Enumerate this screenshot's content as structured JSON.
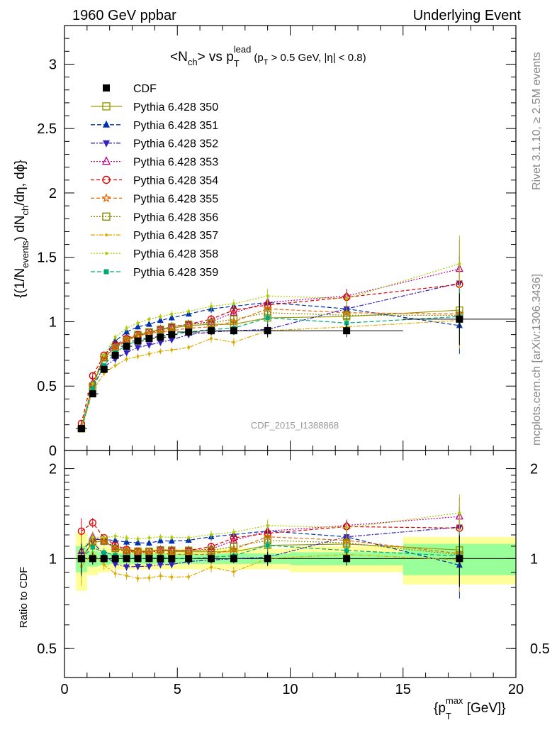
{
  "header": {
    "left": "1960 GeV ppbar",
    "right": "Underlying Event"
  },
  "side": {
    "rivet": "Rivet 3.1.10, ≥ 2.5M events",
    "mcplots": "mcplots.cern.ch [arXiv:1306.3436]"
  },
  "watermark": "CDF_2015_I1388868",
  "title": {
    "pre": "<N",
    "sub1": "ch",
    "mid": "> vs p",
    "sub2": "T",
    "sup2": "lead",
    "cut": "(p",
    "cut_sub": "T",
    "cut_rest": " > 0.5 GeV, |η| < 0.8)"
  },
  "ylabel_main": {
    "a": "{(1/N",
    "a_sub": "events",
    "b": ") dN",
    "b_sub": "ch",
    "c": "/dη, dϕ}"
  },
  "ylabel_ratio": "Ratio to CDF",
  "xlabel": {
    "a": "{p",
    "sub": "T",
    "sup": "max",
    "b": " [GeV]}"
  },
  "chart_data": {
    "type": "scatter",
    "x": [
      0.75,
      1.25,
      1.75,
      2.25,
      2.75,
      3.25,
      3.75,
      4.25,
      4.75,
      5.5,
      6.5,
      7.5,
      9.0,
      12.5,
      17.5
    ],
    "x_edges": [
      0.5,
      1.0,
      1.5,
      2.0,
      2.5,
      3.0,
      3.5,
      4.0,
      4.5,
      5.0,
      6.0,
      7.0,
      8.0,
      10.0,
      15.0,
      20.0
    ],
    "xlim": [
      0,
      20
    ],
    "ylim_main": [
      0,
      3.3
    ],
    "ylim_ratio": [
      0.4,
      2.3
    ],
    "yticks_main": [
      0,
      0.5,
      1,
      1.5,
      2,
      2.5,
      3
    ],
    "yticks_ratio": [
      0.5,
      1,
      2
    ],
    "xticks": [
      0,
      5,
      10,
      15,
      20
    ],
    "series": [
      {
        "name": "CDF",
        "color": "#000000",
        "marker": "square-filled",
        "dash": "",
        "values": [
          0.17,
          0.44,
          0.63,
          0.74,
          0.81,
          0.85,
          0.87,
          0.88,
          0.9,
          0.92,
          0.93,
          0.93,
          0.93,
          0.93,
          1.02
        ]
      },
      {
        "name": "Pythia 6.428 350",
        "color": "#999900",
        "marker": "square-open",
        "dash": "",
        "values": [
          0.17,
          0.5,
          0.72,
          0.8,
          0.86,
          0.9,
          0.92,
          0.94,
          0.95,
          0.97,
          0.98,
          0.98,
          1.03,
          1.04,
          1.09
        ]
      },
      {
        "name": "Pythia 6.428 351",
        "color": "#0033aa",
        "marker": "triangle-up-filled",
        "dash": "6,3",
        "values": [
          0.18,
          0.51,
          0.73,
          0.85,
          0.92,
          0.96,
          0.98,
          1.01,
          1.03,
          1.06,
          1.1,
          1.12,
          1.15,
          1.1,
          0.97
        ]
      },
      {
        "name": "Pythia 6.428 352",
        "color": "#3322bb",
        "marker": "triangle-down-filled",
        "dash": "6,2,2,2",
        "values": [
          0.17,
          0.5,
          0.65,
          0.71,
          0.76,
          0.8,
          0.82,
          0.84,
          0.86,
          0.9,
          0.92,
          0.93,
          0.94,
          1.1,
          1.3
        ]
      },
      {
        "name": "Pythia 6.428 353",
        "color": "#bb0088",
        "marker": "triangle-up-open",
        "dash": "2,2",
        "values": [
          0.18,
          0.52,
          0.72,
          0.81,
          0.86,
          0.89,
          0.91,
          0.94,
          0.96,
          0.98,
          1.0,
          1.07,
          1.15,
          1.2,
          1.41
        ]
      },
      {
        "name": "Pythia 6.428 354",
        "color": "#dd0000",
        "marker": "circle-open",
        "dash": "5,3",
        "values": [
          0.21,
          0.58,
          0.74,
          0.82,
          0.87,
          0.9,
          0.92,
          0.94,
          0.96,
          0.98,
          1.02,
          1.09,
          1.13,
          1.19,
          1.29
        ]
      },
      {
        "name": "Pythia 6.428 355",
        "color": "#ee6600",
        "marker": "star-open",
        "dash": "5,3",
        "values": [
          0.17,
          0.5,
          0.72,
          0.8,
          0.86,
          0.89,
          0.91,
          0.92,
          0.93,
          0.95,
          0.96,
          1.0,
          1.1,
          1.07,
          1.06
        ]
      },
      {
        "name": "Pythia 6.428 356",
        "color": "#888800",
        "marker": "square-open",
        "dash": "2,2",
        "values": [
          0.17,
          0.5,
          0.72,
          0.8,
          0.85,
          0.89,
          0.92,
          0.94,
          0.96,
          0.98,
          0.99,
          1.02,
          1.07,
          1.05,
          1.05
        ]
      },
      {
        "name": "Pythia 6.428 357",
        "color": "#ddaa00",
        "marker": "dot",
        "dash": "6,2,2,2",
        "values": [
          0.16,
          0.46,
          0.6,
          0.66,
          0.71,
          0.73,
          0.75,
          0.77,
          0.78,
          0.8,
          0.87,
          0.84,
          0.93,
          0.96,
          1.01
        ]
      },
      {
        "name": "Pythia 6.428 358",
        "color": "#aacc00",
        "marker": "dot",
        "dash": "2,2",
        "values": [
          0.18,
          0.52,
          0.74,
          0.88,
          0.95,
          0.99,
          1.02,
          1.04,
          1.06,
          1.08,
          1.12,
          1.14,
          1.2,
          1.18,
          1.45
        ]
      },
      {
        "name": "Pythia 6.428 359",
        "color": "#00aa77",
        "marker": "square-small-filled",
        "dash": "6,3",
        "values": [
          0.17,
          0.48,
          0.66,
          0.76,
          0.82,
          0.85,
          0.87,
          0.89,
          0.9,
          0.92,
          0.94,
          0.95,
          1.03,
          0.99,
          1.04
        ]
      }
    ],
    "data_errors": [
      0.02,
      0.02,
      0.02,
      0.02,
      0.02,
      0.02,
      0.02,
      0.02,
      0.02,
      0.02,
      0.03,
      0.03,
      0.05,
      0.05,
      0.2
    ],
    "band_inner": [
      0.1,
      0.06,
      0.05,
      0.04,
      0.04,
      0.04,
      0.04,
      0.04,
      0.04,
      0.04,
      0.04,
      0.04,
      0.04,
      0.05,
      0.12
    ],
    "band_outer": [
      0.22,
      0.12,
      0.1,
      0.08,
      0.08,
      0.08,
      0.08,
      0.08,
      0.08,
      0.08,
      0.08,
      0.08,
      0.08,
      0.1,
      0.18
    ]
  }
}
